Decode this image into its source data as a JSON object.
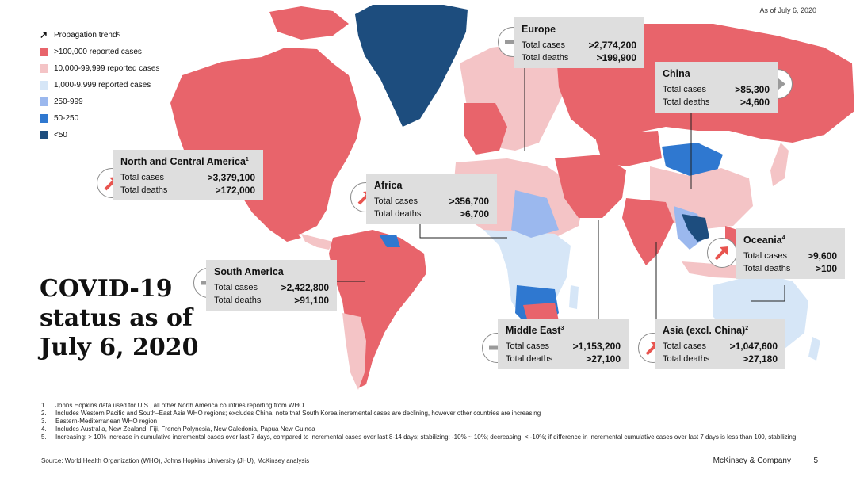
{
  "date_label": "As of July 6, 2020",
  "legend": {
    "trend_label": "Propagation trend",
    "trend_note": "5",
    "items": [
      {
        "label": ">100,000 reported cases",
        "color": "#e8646b"
      },
      {
        "label": "10,000-99,999 reported cases",
        "color": "#f4c4c6"
      },
      {
        "label": "1,000-9,999 reported cases",
        "color": "#d6e6f7"
      },
      {
        "label": "250-999",
        "color": "#9bb8ee"
      },
      {
        "label": "50-250",
        "color": "#2f78d0"
      },
      {
        "label": "<50",
        "color": "#1d4d7e"
      }
    ]
  },
  "labels": {
    "cases": "Total cases",
    "deaths": "Total deaths"
  },
  "regions": {
    "north_america": {
      "name": "North and Central America",
      "note": "1",
      "cases": ">3,379,100",
      "deaths": ">172,000",
      "trend": "increasing"
    },
    "south_america": {
      "name": "South America",
      "note": "",
      "cases": ">2,422,800",
      "deaths": ">91,100",
      "trend": "stabilizing"
    },
    "europe": {
      "name": "Europe",
      "note": "",
      "cases": ">2,774,200",
      "deaths": ">199,900",
      "trend": "stabilizing"
    },
    "africa": {
      "name": "Africa",
      "note": "",
      "cases": ">356,700",
      "deaths": ">6,700",
      "trend": "increasing"
    },
    "china": {
      "name": "China",
      "note": "",
      "cases": ">85,300",
      "deaths": ">4,600",
      "trend": "stabilizing"
    },
    "middle_east": {
      "name": "Middle East",
      "note": "3",
      "cases": ">1,153,200",
      "deaths": ">27,100",
      "trend": "stabilizing"
    },
    "asia": {
      "name": "Asia (excl. China)",
      "note": "2",
      "cases": ">1,047,600",
      "deaths": ">27,180",
      "trend": "increasing"
    },
    "oceania": {
      "name": "Oceania",
      "note": "4",
      "cases": ">9,600",
      "deaths": ">100",
      "trend": "increasing"
    }
  },
  "title": {
    "line1": "COVID-19",
    "line2": "status as of",
    "line3": "July 6, 2020"
  },
  "footnotes": [
    {
      "n": "1.",
      "text": "Johns Hopkins data used for U.S., all other North America countries reporting from WHO"
    },
    {
      "n": "2.",
      "text": "Includes Western Pacific and South–East Asia WHO regions; excludes China; note that South Korea incremental cases are declining, however other countries are increasing"
    },
    {
      "n": "3.",
      "text": "Eastern-Mediterranean WHO region"
    },
    {
      "n": "4.",
      "text": "Includes Australia, New Zealand, Fiji, French Polynesia, New Caledonia, Papua New Guinea"
    },
    {
      "n": "5.",
      "text": "Increasing: > 10% increase in cumulative incremental cases over last 7 days, compared to incremental cases over last 8-14 days; stabilizing: -10% ~ 10%; decreasing: < -10%; if difference in incremental cumulative cases over last 7 days is less than 100, stabilizing"
    }
  ],
  "source": "Source: World Health Organization (WHO), Johns Hopkins University (JHU), McKinsey analysis",
  "brand": "McKinsey & Company",
  "page_number": "5",
  "colors": {
    "increasing_arrow": "#e8544f",
    "stabilizing_arrow": "#9a9a9a",
    "box_bg": "#dedede"
  }
}
